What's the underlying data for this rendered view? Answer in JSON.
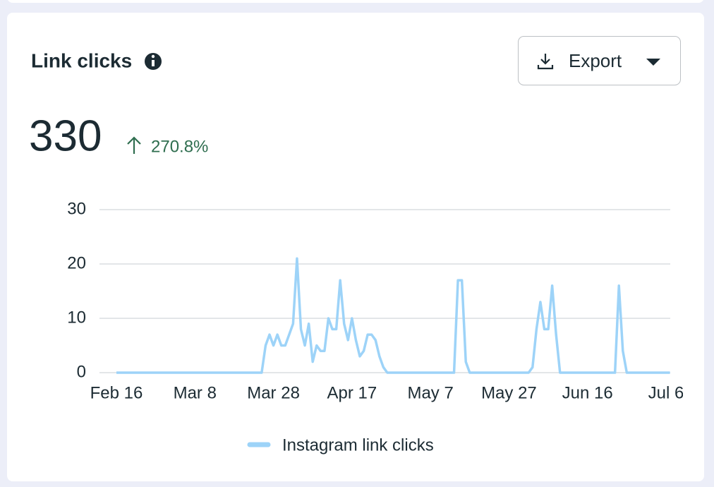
{
  "header": {
    "title": "Link clicks",
    "export": "Export"
  },
  "summary": {
    "total": "330",
    "change": "270.8%"
  },
  "chart_data": {
    "type": "line",
    "categories": [
      "Feb 16",
      null,
      null,
      null,
      null,
      null,
      null,
      null,
      null,
      null,
      null,
      null,
      null,
      null,
      null,
      null,
      null,
      null,
      null,
      null,
      "Mar 8",
      null,
      null,
      null,
      null,
      null,
      null,
      null,
      null,
      null,
      null,
      null,
      null,
      null,
      null,
      null,
      null,
      null,
      null,
      null,
      "Mar 28",
      null,
      null,
      null,
      null,
      null,
      null,
      null,
      null,
      null,
      null,
      null,
      null,
      null,
      null,
      null,
      null,
      null,
      null,
      null,
      "Apr 17",
      null,
      null,
      null,
      null,
      null,
      null,
      null,
      null,
      null,
      null,
      null,
      null,
      null,
      null,
      null,
      null,
      null,
      null,
      null,
      "May 7",
      null,
      null,
      null,
      null,
      null,
      null,
      null,
      null,
      null,
      null,
      null,
      null,
      null,
      null,
      null,
      null,
      null,
      null,
      null,
      "May 27",
      null,
      null,
      null,
      null,
      null,
      null,
      null,
      null,
      null,
      null,
      null,
      null,
      null,
      null,
      null,
      null,
      null,
      null,
      null,
      "Jun 16",
      null,
      null,
      null,
      null,
      null,
      null,
      null,
      null,
      null,
      null,
      null,
      null,
      null,
      null,
      null,
      null,
      null,
      null,
      null,
      "Jul 6",
      null
    ],
    "series": [
      {
        "name": "Instagram link clicks",
        "color": "#9dd3f8",
        "values": [
          0,
          0,
          0,
          0,
          0,
          0,
          0,
          0,
          0,
          0,
          0,
          0,
          0,
          0,
          0,
          0,
          0,
          0,
          0,
          0,
          0,
          0,
          0,
          0,
          0,
          0,
          0,
          0,
          0,
          0,
          0,
          0,
          0,
          0,
          0,
          0,
          0,
          0,
          5,
          7,
          5,
          7,
          5,
          5,
          7,
          9,
          21,
          8,
          5,
          9,
          2,
          5,
          4,
          4,
          10,
          8,
          8,
          17,
          9,
          6,
          10,
          6,
          3,
          4,
          7,
          7,
          6,
          3,
          1,
          0,
          0,
          0,
          0,
          0,
          0,
          0,
          0,
          0,
          0,
          0,
          0,
          0,
          0,
          0,
          0,
          0,
          0,
          17,
          17,
          2,
          0,
          0,
          0,
          0,
          0,
          0,
          0,
          0,
          0,
          0,
          0,
          0,
          0,
          0,
          0,
          0,
          1,
          8,
          13,
          8,
          8,
          16,
          7,
          0,
          0,
          0,
          0,
          0,
          0,
          0,
          0,
          0,
          0,
          0,
          0,
          0,
          0,
          0,
          16,
          4,
          0,
          0,
          0,
          0,
          0,
          0,
          0,
          0,
          0,
          0,
          0,
          0
        ]
      }
    ],
    "ylim": [
      0,
      30
    ],
    "yticks": [
      0,
      10,
      20,
      30
    ],
    "grid": true
  }
}
